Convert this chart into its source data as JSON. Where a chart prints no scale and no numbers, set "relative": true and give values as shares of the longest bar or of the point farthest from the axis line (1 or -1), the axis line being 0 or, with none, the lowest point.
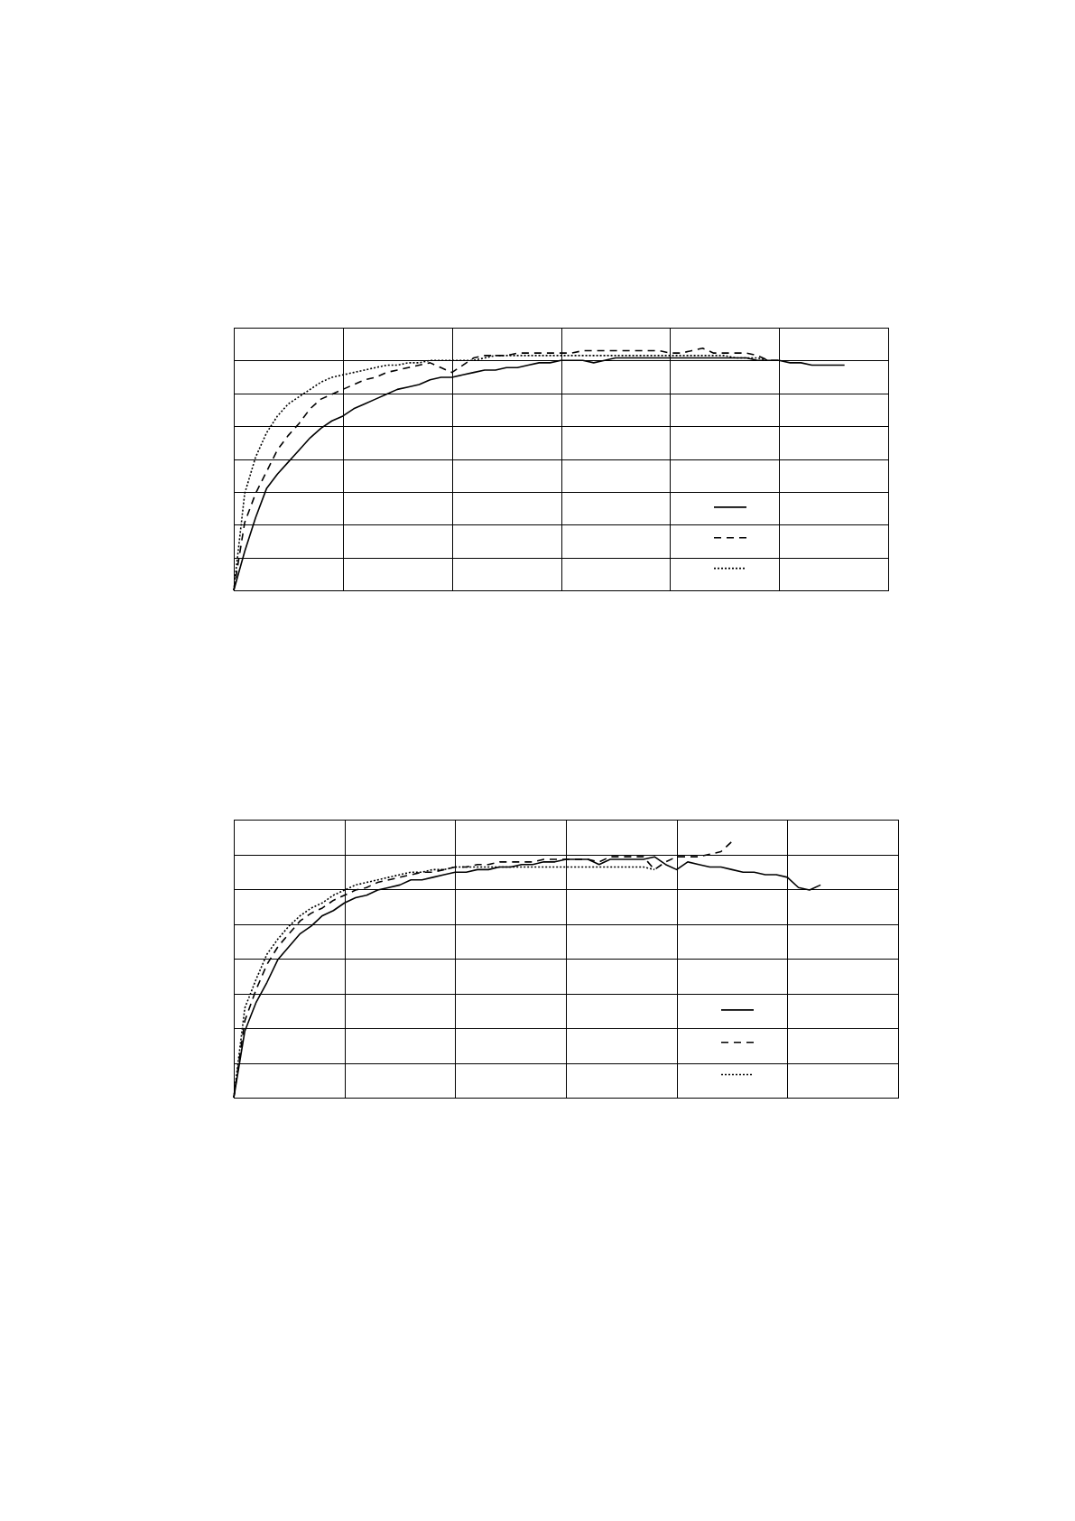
{
  "chart_data": [
    {
      "type": "line",
      "relative": true,
      "grid": true,
      "categories": [
        null,
        null,
        null,
        null,
        null,
        null,
        null,
        null,
        null,
        null,
        null,
        null,
        null,
        null,
        null,
        null,
        null,
        null,
        null,
        null,
        null,
        null,
        null,
        null,
        null,
        null,
        null,
        null,
        null,
        null,
        null,
        null,
        null,
        null,
        null,
        null,
        null,
        null,
        null,
        null,
        null,
        null,
        null,
        null,
        null,
        null,
        null,
        null,
        null,
        null,
        null,
        null,
        null,
        null,
        null,
        null,
        null,
        null,
        null,
        null,
        null
      ],
      "series": [
        {
          "color": "#000000",
          "line_style": "solid",
          "values": [
            0,
            0.16,
            0.3,
            0.42,
            0.48,
            0.53,
            0.58,
            0.63,
            0.67,
            0.7,
            0.72,
            0.75,
            0.77,
            0.79,
            0.81,
            0.83,
            0.84,
            0.85,
            0.87,
            0.88,
            0.88,
            0.89,
            0.9,
            0.91,
            0.91,
            0.92,
            0.92,
            0.93,
            0.94,
            0.94,
            0.95,
            0.95,
            0.95,
            0.94,
            0.95,
            0.96,
            0.96,
            0.96,
            0.96,
            0.96,
            0.96,
            0.96,
            0.96,
            0.96,
            0.96,
            0.96,
            0.96,
            0.96,
            0.95,
            0.95,
            0.95,
            0.94,
            0.94,
            0.93,
            0.93,
            0.93,
            0.93,
            null,
            null,
            null,
            null
          ]
        },
        {
          "color": "#000000",
          "line_style": "dashed",
          "values": [
            0,
            0.28,
            0.4,
            0.49,
            0.58,
            0.64,
            0.69,
            0.75,
            0.79,
            0.81,
            0.83,
            0.85,
            0.87,
            0.88,
            0.9,
            0.91,
            0.92,
            0.93,
            0.94,
            0.92,
            0.9,
            0.93,
            0.96,
            0.97,
            0.97,
            0.97,
            0.98,
            0.98,
            0.98,
            0.98,
            0.98,
            0.98,
            0.99,
            0.99,
            0.99,
            0.99,
            0.99,
            0.99,
            0.99,
            0.99,
            0.98,
            0.98,
            0.99,
            1,
            0.98,
            0.98,
            0.98,
            0.98,
            0.97,
            0.95,
            0.95,
            null,
            null,
            null,
            null,
            null,
            null,
            null,
            null,
            null,
            null
          ]
        },
        {
          "color": "#000000",
          "line_style": "dotted",
          "values": [
            0,
            0.4,
            0.55,
            0.65,
            0.72,
            0.77,
            0.8,
            0.83,
            0.86,
            0.88,
            0.89,
            0.9,
            0.91,
            0.92,
            0.93,
            0.93,
            0.94,
            0.94,
            0.95,
            0.95,
            0.95,
            0.95,
            0.95,
            0.96,
            0.97,
            0.97,
            0.97,
            0.97,
            0.97,
            0.97,
            0.97,
            0.97,
            0.97,
            0.97,
            0.97,
            0.97,
            0.97,
            0.97,
            0.97,
            0.97,
            0.97,
            0.97,
            0.97,
            0.97,
            0.97,
            0.97,
            0.96,
            0.96,
            0.96,
            0.95,
            null,
            null,
            null,
            null,
            null,
            null,
            null,
            null,
            null,
            null,
            null
          ]
        }
      ]
    },
    {
      "type": "line",
      "relative": true,
      "grid": true,
      "categories": [
        null,
        null,
        null,
        null,
        null,
        null,
        null,
        null,
        null,
        null,
        null,
        null,
        null,
        null,
        null,
        null,
        null,
        null,
        null,
        null,
        null,
        null,
        null,
        null,
        null,
        null,
        null,
        null,
        null,
        null,
        null,
        null,
        null,
        null,
        null,
        null,
        null,
        null,
        null,
        null,
        null,
        null,
        null,
        null,
        null,
        null,
        null,
        null,
        null,
        null,
        null,
        null,
        null,
        null,
        null,
        null,
        null,
        null,
        null,
        null,
        null
      ],
      "series": [
        {
          "color": "#000000",
          "line_style": "solid",
          "values": [
            0,
            0.26,
            0.37,
            0.45,
            0.54,
            0.59,
            0.64,
            0.67,
            0.71,
            0.73,
            0.76,
            0.78,
            0.79,
            0.81,
            0.82,
            0.83,
            0.85,
            0.85,
            0.86,
            0.87,
            0.88,
            0.88,
            0.89,
            0.89,
            0.9,
            0.9,
            0.91,
            0.91,
            0.92,
            0.92,
            0.93,
            0.93,
            0.93,
            0.91,
            0.93,
            0.93,
            0.93,
            0.93,
            0.94,
            0.91,
            0.89,
            0.92,
            0.91,
            0.9,
            0.9,
            0.89,
            0.88,
            0.88,
            0.87,
            0.87,
            0.86,
            0.82,
            0.81,
            0.83,
            null,
            null,
            null,
            null,
            null,
            null,
            null
          ]
        },
        {
          "color": "#000000",
          "line_style": "dashed",
          "values": [
            0,
            0.3,
            0.42,
            0.52,
            0.59,
            0.64,
            0.69,
            0.72,
            0.74,
            0.77,
            0.79,
            0.81,
            0.82,
            0.84,
            0.85,
            0.86,
            0.87,
            0.88,
            0.88,
            0.89,
            0.9,
            0.9,
            0.91,
            0.91,
            0.92,
            0.92,
            0.92,
            0.92,
            0.93,
            0.93,
            0.93,
            0.93,
            0.93,
            0.92,
            0.94,
            0.94,
            0.94,
            0.94,
            0.89,
            0.92,
            0.94,
            0.94,
            0.94,
            0.95,
            0.96,
            1,
            null,
            null,
            null,
            null,
            null,
            null,
            null,
            null,
            null,
            null,
            null,
            null,
            null,
            null,
            null
          ]
        },
        {
          "color": "#000000",
          "line_style": "dotted",
          "values": [
            0,
            0.35,
            0.46,
            0.56,
            0.62,
            0.67,
            0.71,
            0.74,
            0.76,
            0.79,
            0.81,
            0.83,
            0.84,
            0.85,
            0.86,
            0.87,
            0.88,
            0.88,
            0.89,
            0.89,
            0.9,
            0.9,
            0.9,
            0.9,
            0.9,
            0.9,
            0.9,
            0.9,
            0.9,
            0.9,
            0.9,
            0.9,
            0.9,
            0.9,
            0.9,
            0.9,
            0.9,
            0.9,
            0.89,
            null,
            null,
            null,
            null,
            null,
            null,
            null,
            null,
            null,
            null,
            null,
            null,
            null,
            null,
            null,
            null,
            null,
            null,
            null,
            null,
            null,
            null
          ]
        }
      ]
    }
  ]
}
